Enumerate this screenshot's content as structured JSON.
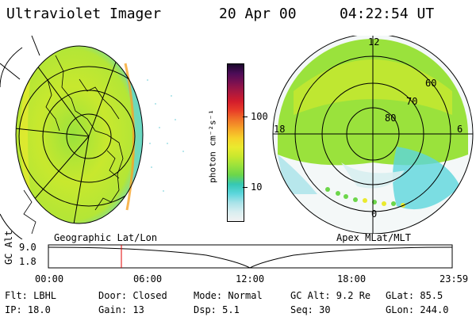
{
  "header": {
    "instrument": "Ultraviolet Imager",
    "date": "20 Apr 00",
    "time": "04:22:54 UT"
  },
  "colorbar": {
    "unit_label": "photon cm⁻²s⁻¹",
    "ticks": [
      "100",
      "10"
    ],
    "colors": [
      "#f2f2f2",
      "#d8eef0",
      "#a8e2e8",
      "#5cd6dc",
      "#36c8b4",
      "#6cd64a",
      "#9ae23c",
      "#c8e82e",
      "#eaea2e",
      "#f6d22a",
      "#f6a428",
      "#f07428",
      "#e83c28",
      "#d21c2c",
      "#a81840",
      "#7c1050",
      "#4c0c58",
      "#1a082a"
    ]
  },
  "left_panel": {
    "caption": "Geographic Lat/Lon"
  },
  "right_panel": {
    "caption": "Apex MLat/MLT",
    "mlt_labels": [
      "12",
      "18",
      "6",
      "0"
    ],
    "lat_labels": [
      "60",
      "70",
      "80"
    ]
  },
  "timeline": {
    "axis_label": "GC Alt",
    "y_ticks": [
      "9.0",
      "1.8"
    ],
    "x_ticks": [
      "00:00",
      "06:00",
      "12:00",
      "18:00",
      "23:59"
    ],
    "marker_color": "#e00000"
  },
  "footer": {
    "flt": "Flt: LBHL",
    "ip": "IP: 18.0",
    "door": "Door: Closed",
    "gain": "Gain: 13",
    "mode": "Mode: Normal",
    "dsp": "Dsp:    5.1",
    "gcalt": "GC Alt: 9.2 Re",
    "seq": "Seq: 30",
    "glat": "GLat:  85.5",
    "glon": "GLon: 244.0"
  }
}
